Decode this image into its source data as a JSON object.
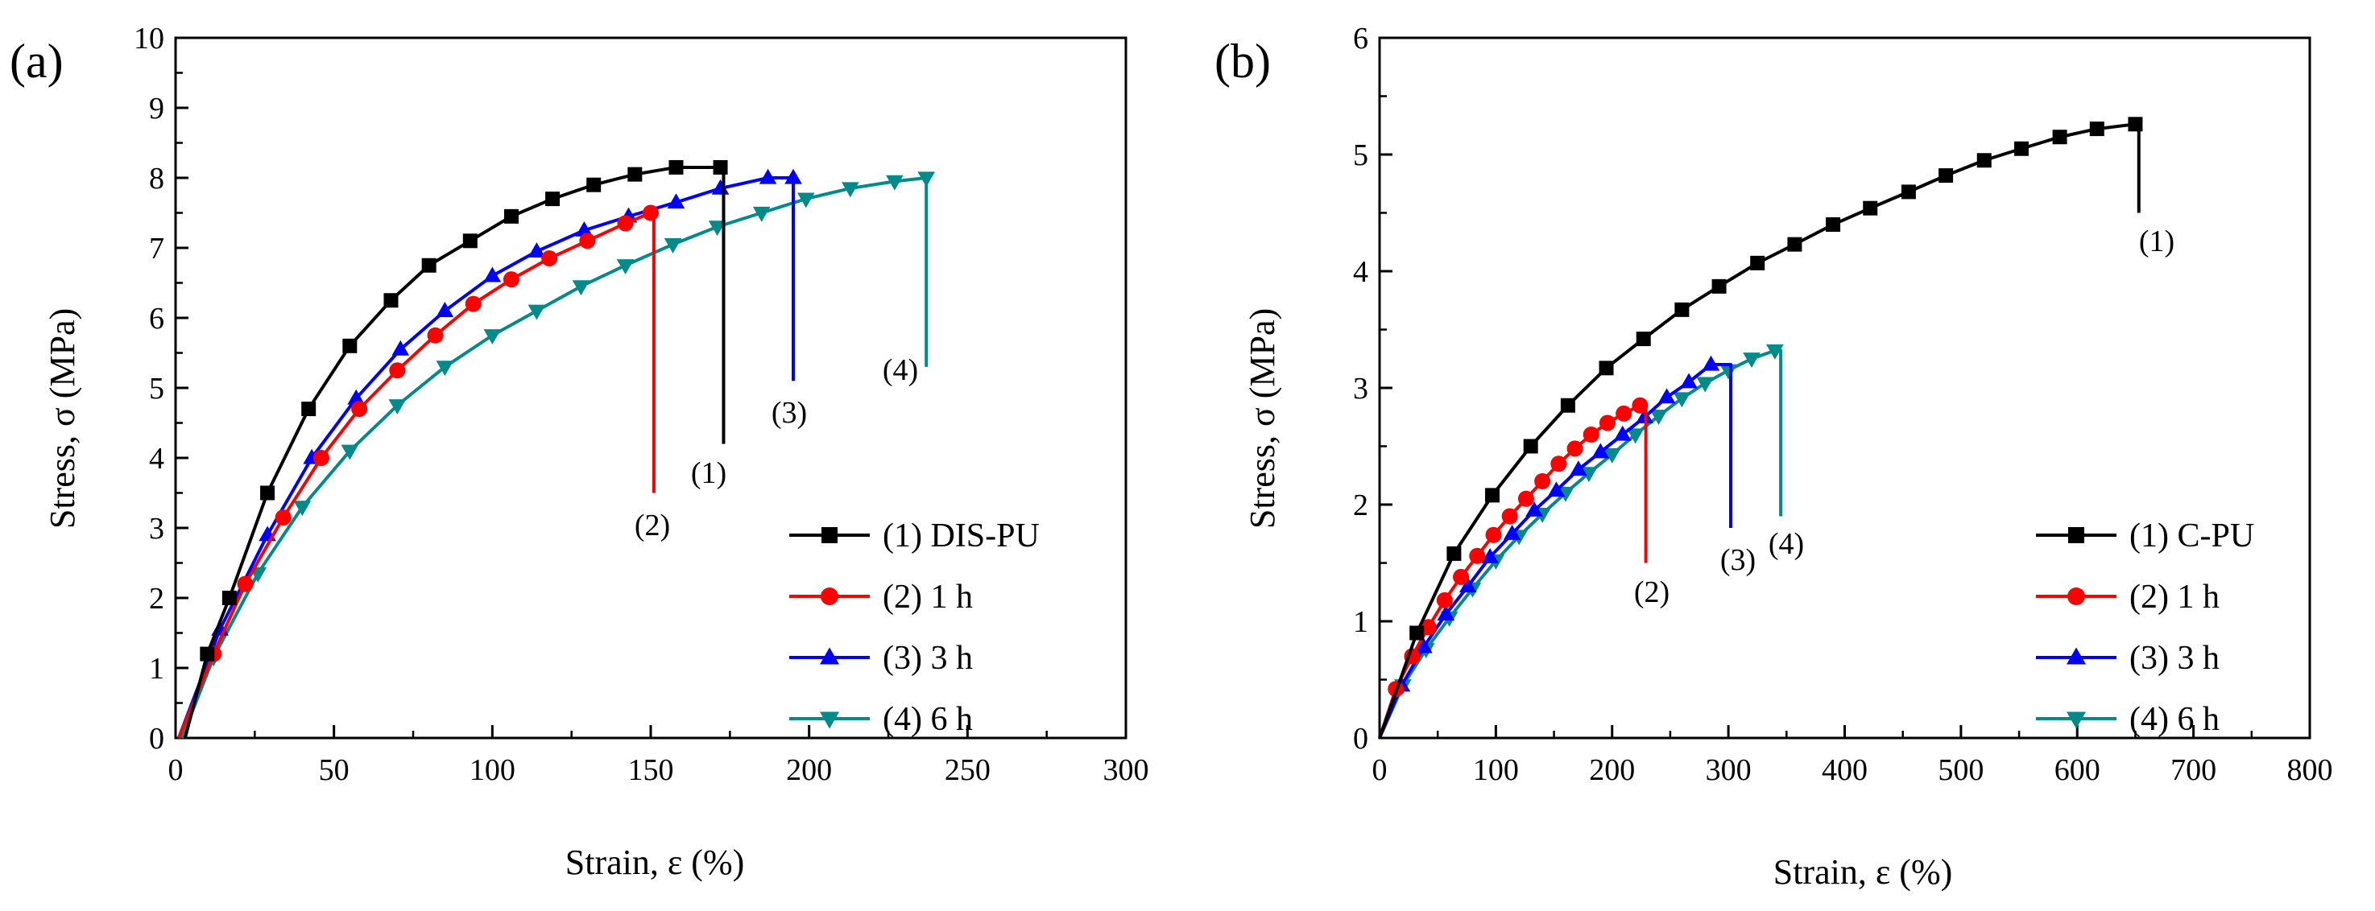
{
  "chart_data": [
    {
      "panel": "(a)",
      "type": "line",
      "xlabel": "Strain, ε (%)",
      "ylabel": "Stress, σ (MPa)",
      "xlim": [
        0,
        300
      ],
      "ylim": [
        0,
        10
      ],
      "xticks": [
        0,
        50,
        100,
        150,
        200,
        250,
        300
      ],
      "yticks": [
        0,
        1,
        2,
        3,
        4,
        5,
        6,
        7,
        8,
        9,
        10
      ],
      "legend_position": "bottom-right",
      "series": [
        {
          "label": "(1) DIS-PU",
          "annotation": "(1)",
          "color": "#000000",
          "marker": "square",
          "x": [
            3,
            10,
            17,
            29,
            42,
            55,
            68,
            80,
            93,
            106,
            119,
            132,
            145,
            158,
            172
          ],
          "y": [
            0,
            1.2,
            2.0,
            3.5,
            4.7,
            5.6,
            6.25,
            6.75,
            7.1,
            7.45,
            7.7,
            7.9,
            8.05,
            8.15,
            8.15
          ],
          "break_x": 173,
          "break_to_y": 4.2
        },
        {
          "label": "(2) 1 h",
          "annotation": "(2)",
          "color": "#ff0000",
          "marker": "circle",
          "x": [
            1,
            12,
            22,
            34,
            46,
            58,
            70,
            82,
            94,
            106,
            118,
            130,
            142,
            150
          ],
          "y": [
            0,
            1.2,
            2.2,
            3.15,
            4.0,
            4.7,
            5.25,
            5.75,
            6.2,
            6.55,
            6.85,
            7.1,
            7.35,
            7.5
          ],
          "break_x": 151,
          "break_to_y": 3.5
        },
        {
          "label": "(3) 3 h",
          "annotation": "(3)",
          "color": "#0000ff",
          "marker": "triangle-up",
          "x": [
            1,
            14,
            29,
            43,
            57,
            71,
            85,
            100,
            114,
            129,
            143,
            158,
            172,
            187,
            195
          ],
          "y": [
            0,
            1.55,
            2.9,
            4.0,
            4.85,
            5.55,
            6.1,
            6.6,
            6.95,
            7.25,
            7.45,
            7.65,
            7.85,
            8.0,
            8.0
          ],
          "break_x": 195,
          "break_to_y": 5.1
        },
        {
          "label": "(4) 6 h",
          "annotation": "(4)",
          "color": "#008b8b",
          "marker": "triangle-down",
          "x": [
            2,
            12,
            26,
            40,
            55,
            70,
            85,
            100,
            114,
            128,
            142,
            157,
            171,
            185,
            199,
            213,
            227,
            237
          ],
          "y": [
            0,
            1.15,
            2.35,
            3.3,
            4.1,
            4.75,
            5.3,
            5.75,
            6.1,
            6.45,
            6.75,
            7.05,
            7.3,
            7.5,
            7.7,
            7.85,
            7.95,
            8.0
          ],
          "break_x": 237,
          "break_to_y": 5.3
        }
      ]
    },
    {
      "panel": "(b)",
      "type": "line",
      "xlabel": "Strain, ε (%)",
      "ylabel": "Stress, σ (MPa)",
      "xlim": [
        0,
        800
      ],
      "ylim": [
        0,
        6
      ],
      "xticks": [
        0,
        100,
        200,
        300,
        400,
        500,
        600,
        700,
        800
      ],
      "yticks": [
        0,
        1,
        2,
        3,
        4,
        5,
        6
      ],
      "legend_position": "bottom-right",
      "series": [
        {
          "label": "(1) C-PU",
          "annotation": "(1)",
          "color": "#000000",
          "marker": "square",
          "x": [
            0,
            32,
            64,
            97,
            130,
            162,
            195,
            227,
            260,
            292,
            325,
            357,
            390,
            422,
            455,
            487,
            520,
            552,
            585,
            617,
            650
          ],
          "y": [
            0,
            0.9,
            1.58,
            2.08,
            2.5,
            2.85,
            3.17,
            3.42,
            3.67,
            3.87,
            4.07,
            4.23,
            4.4,
            4.54,
            4.68,
            4.82,
            4.95,
            5.05,
            5.15,
            5.22,
            5.26
          ],
          "break_x": 653,
          "break_to_y": 4.5
        },
        {
          "label": "(2) 1 h",
          "annotation": "(2)",
          "color": "#ff0000",
          "marker": "circle",
          "x": [
            0,
            14,
            28,
            42,
            56,
            70,
            84,
            98,
            112,
            126,
            140,
            154,
            168,
            182,
            196,
            210,
            224
          ],
          "y": [
            0,
            0.42,
            0.7,
            0.95,
            1.18,
            1.38,
            1.56,
            1.74,
            1.9,
            2.05,
            2.2,
            2.35,
            2.48,
            2.6,
            2.7,
            2.78,
            2.85
          ],
          "break_x": 229,
          "break_to_y": 1.5
        },
        {
          "label": "(3) 3 h",
          "annotation": "(3)",
          "color": "#0000ff",
          "marker": "triangle-up",
          "x": [
            0,
            19,
            38,
            57,
            76,
            95,
            114,
            133,
            152,
            171,
            190,
            209,
            228,
            247,
            266,
            285
          ],
          "y": [
            0,
            0.45,
            0.78,
            1.06,
            1.3,
            1.55,
            1.75,
            1.95,
            2.12,
            2.3,
            2.45,
            2.6,
            2.75,
            2.92,
            3.05,
            3.2
          ],
          "break_x": 302,
          "break_to_y": 1.8
        },
        {
          "label": "(4) 6 h",
          "annotation": "(4)",
          "color": "#008b8b",
          "marker": "triangle-down",
          "x": [
            0,
            20,
            40,
            60,
            80,
            100,
            120,
            140,
            160,
            180,
            200,
            220,
            240,
            260,
            280,
            300,
            320,
            340
          ],
          "y": [
            0,
            0.45,
            0.76,
            1.03,
            1.28,
            1.52,
            1.73,
            1.92,
            2.1,
            2.27,
            2.43,
            2.6,
            2.76,
            2.91,
            3.04,
            3.15,
            3.25,
            3.32
          ],
          "break_x": 345,
          "break_to_y": 1.9
        }
      ]
    }
  ]
}
